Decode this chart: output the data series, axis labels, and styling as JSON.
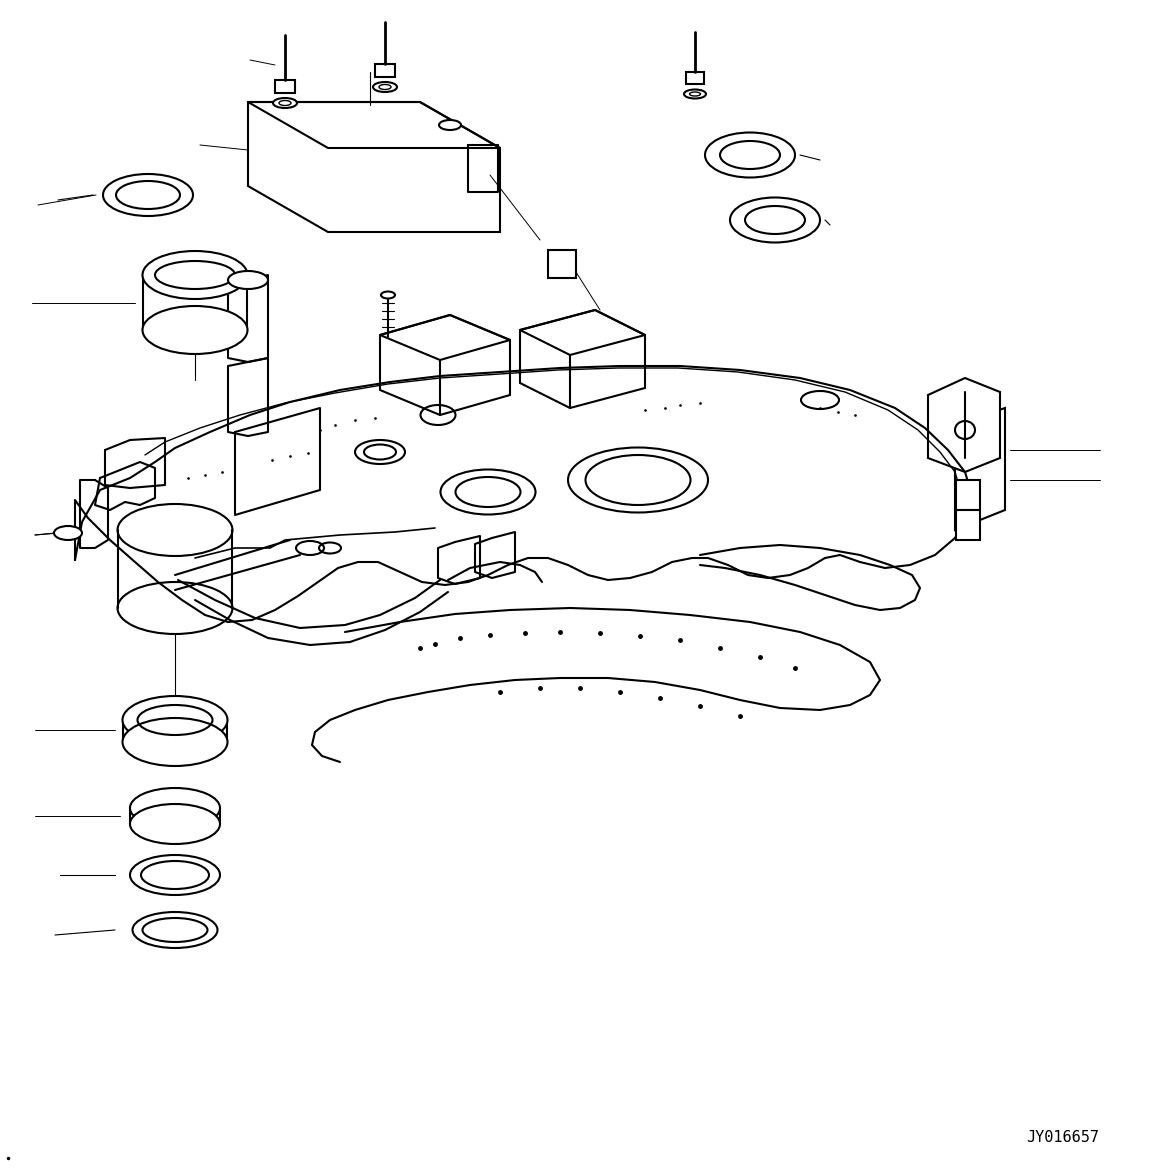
{
  "figsize": [
    11.63,
    11.73
  ],
  "dpi": 100,
  "bg_color": "#ffffff",
  "line_color": "#000000",
  "lw": 1.0,
  "part_id": "JY016657"
}
